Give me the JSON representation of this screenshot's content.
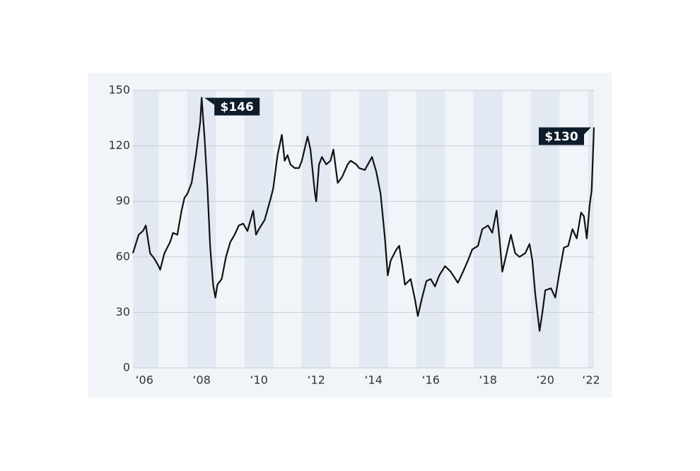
{
  "chart_data": {
    "type": "line",
    "xlim": [
      2006.1,
      2022.2
    ],
    "ylim": [
      0,
      150
    ],
    "yticks": [
      0,
      30,
      60,
      90,
      120,
      150
    ],
    "xticks": [
      {
        "value": 2006,
        "label": "‘06"
      },
      {
        "value": 2008,
        "label": "‘08"
      },
      {
        "value": 2010,
        "label": "‘10"
      },
      {
        "value": 2012,
        "label": "‘12"
      },
      {
        "value": 2014,
        "label": "‘14"
      },
      {
        "value": 2016,
        "label": "‘16"
      },
      {
        "value": 2018,
        "label": "‘18"
      },
      {
        "value": 2020,
        "label": "‘20"
      },
      {
        "value": 2022,
        "label": "‘22"
      }
    ],
    "grid": true,
    "x": [
      2006.1,
      2006.3,
      2006.45,
      2006.55,
      2006.7,
      2006.85,
      2007.0,
      2007.05,
      2007.2,
      2007.4,
      2007.5,
      2007.65,
      2007.8,
      2007.9,
      2008.0,
      2008.15,
      2008.3,
      2008.45,
      2008.5,
      2008.6,
      2008.7,
      2008.8,
      2008.9,
      2008.98,
      2009.05,
      2009.2,
      2009.35,
      2009.5,
      2009.65,
      2009.8,
      2009.95,
      2010.1,
      2010.3,
      2010.4,
      2010.5,
      2010.7,
      2010.9,
      2011.0,
      2011.15,
      2011.3,
      2011.4,
      2011.5,
      2011.6,
      2011.75,
      2011.9,
      2012.0,
      2012.2,
      2012.3,
      2012.45,
      2012.5,
      2012.6,
      2012.7,
      2012.85,
      2013.0,
      2013.1,
      2013.25,
      2013.4,
      2013.6,
      2013.7,
      2013.9,
      2014.0,
      2014.2,
      2014.45,
      2014.6,
      2014.75,
      2014.9,
      2015.0,
      2015.1,
      2015.3,
      2015.4,
      2015.5,
      2015.6,
      2015.8,
      2015.95,
      2016.05,
      2016.2,
      2016.35,
      2016.5,
      2016.65,
      2016.8,
      2017.0,
      2017.2,
      2017.45,
      2017.6,
      2017.8,
      2017.95,
      2018.15,
      2018.3,
      2018.5,
      2018.65,
      2018.8,
      2018.9,
      2019.0,
      2019.15,
      2019.3,
      2019.45,
      2019.6,
      2019.8,
      2019.95,
      2020.05,
      2020.15,
      2020.3,
      2020.4,
      2020.5,
      2020.7,
      2020.85,
      2021.0,
      2021.15,
      2021.3,
      2021.45,
      2021.6,
      2021.75,
      2021.85,
      2021.95,
      2022.05,
      2022.12,
      2022.2
    ],
    "series": [
      {
        "color": "#111111",
        "values": [
          62,
          72,
          74,
          77,
          62,
          59,
          55,
          53,
          62,
          68,
          73,
          72,
          85,
          92,
          94,
          100,
          115,
          133,
          146,
          125,
          98,
          65,
          45,
          38,
          45,
          48,
          60,
          68,
          72,
          77,
          78,
          74,
          85,
          72,
          75,
          80,
          91,
          97,
          115,
          126,
          112,
          115,
          110,
          108,
          108,
          112,
          125,
          118,
          95,
          90,
          110,
          114,
          110,
          112,
          118,
          100,
          103,
          110,
          112,
          110,
          108,
          107,
          114,
          106,
          94,
          70,
          50,
          58,
          64,
          66,
          56,
          45,
          48,
          37,
          28,
          38,
          47,
          48,
          44,
          50,
          55,
          52,
          46,
          51,
          58,
          64,
          66,
          75,
          77,
          73,
          85,
          70,
          52,
          62,
          72,
          62,
          60,
          62,
          67,
          58,
          40,
          20,
          30,
          42,
          43,
          38,
          52,
          65,
          66,
          75,
          70,
          84,
          82,
          70,
          88,
          96,
          130
        ]
      }
    ],
    "annotations": [
      {
        "text": "$146",
        "x": 2008.5,
        "y": 146
      },
      {
        "text": "$130",
        "x": 2022.2,
        "y": 130
      }
    ]
  }
}
